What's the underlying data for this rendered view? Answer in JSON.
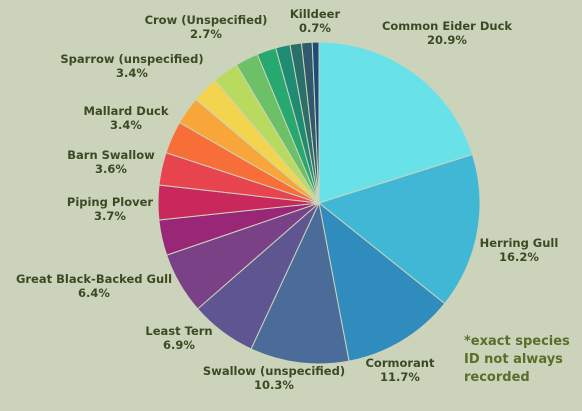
{
  "chart_data": {
    "type": "pie",
    "title": "",
    "unit": "%",
    "slices": [
      {
        "label": "Common Eider Duck",
        "value": 20.9,
        "display": "20.9%",
        "color": "#68e2e8"
      },
      {
        "label": "Herring Gull",
        "value": 16.2,
        "display": "16.2%",
        "color": "#41b7d6"
      },
      {
        "label": "Cormorant",
        "value": 11.7,
        "display": "11.7%",
        "color": "#2f8cbd"
      },
      {
        "label": "Swallow (unspecified)",
        "value": 10.3,
        "display": "10.3%",
        "color": "#4b6c98"
      },
      {
        "label": "Least Tern",
        "value": 6.9,
        "display": "6.9%",
        "color": "#5f5590"
      },
      {
        "label": "Great Black-Backed Gull",
        "value": 6.4,
        "display": "6.4%",
        "color": "#7b4187"
      },
      {
        "label": "Piping Plover",
        "value": 3.7,
        "display": "3.7%",
        "color": "#992676"
      },
      {
        "label": "Barn Swallow",
        "value": 3.6,
        "display": "3.6%",
        "color": "#c9285c"
      },
      {
        "label": "Mallard Duck",
        "value": 3.4,
        "display": "3.4%",
        "color": "#e84450"
      },
      {
        "label": "Sparrow (unspecified)",
        "value": 3.4,
        "display": "3.4%",
        "color": "#f86e38"
      },
      {
        "label": "",
        "value": 2.9,
        "display": "",
        "color": "#f8a63a"
      },
      {
        "label": "",
        "value": 2.8,
        "display": "",
        "color": "#f2d44e"
      },
      {
        "label": "Crow (Unspecified)",
        "value": 2.7,
        "display": "2.7%",
        "color": "#b8da5e"
      },
      {
        "label": "",
        "value": 2.4,
        "display": "",
        "color": "#6cc068"
      },
      {
        "label": "",
        "value": 2.0,
        "display": "",
        "color": "#27a870"
      },
      {
        "label": "",
        "value": 1.5,
        "display": "",
        "color": "#1e8b72"
      },
      {
        "label": "",
        "value": 1.2,
        "display": "",
        "color": "#2b7068"
      },
      {
        "label": "",
        "value": 1.1,
        "display": "",
        "color": "#305a6c"
      },
      {
        "label": "Killdeer",
        "value": 0.7,
        "display": "0.7%",
        "color": "#1e4c7a"
      }
    ]
  },
  "note": "*exact species ID not always recorded"
}
